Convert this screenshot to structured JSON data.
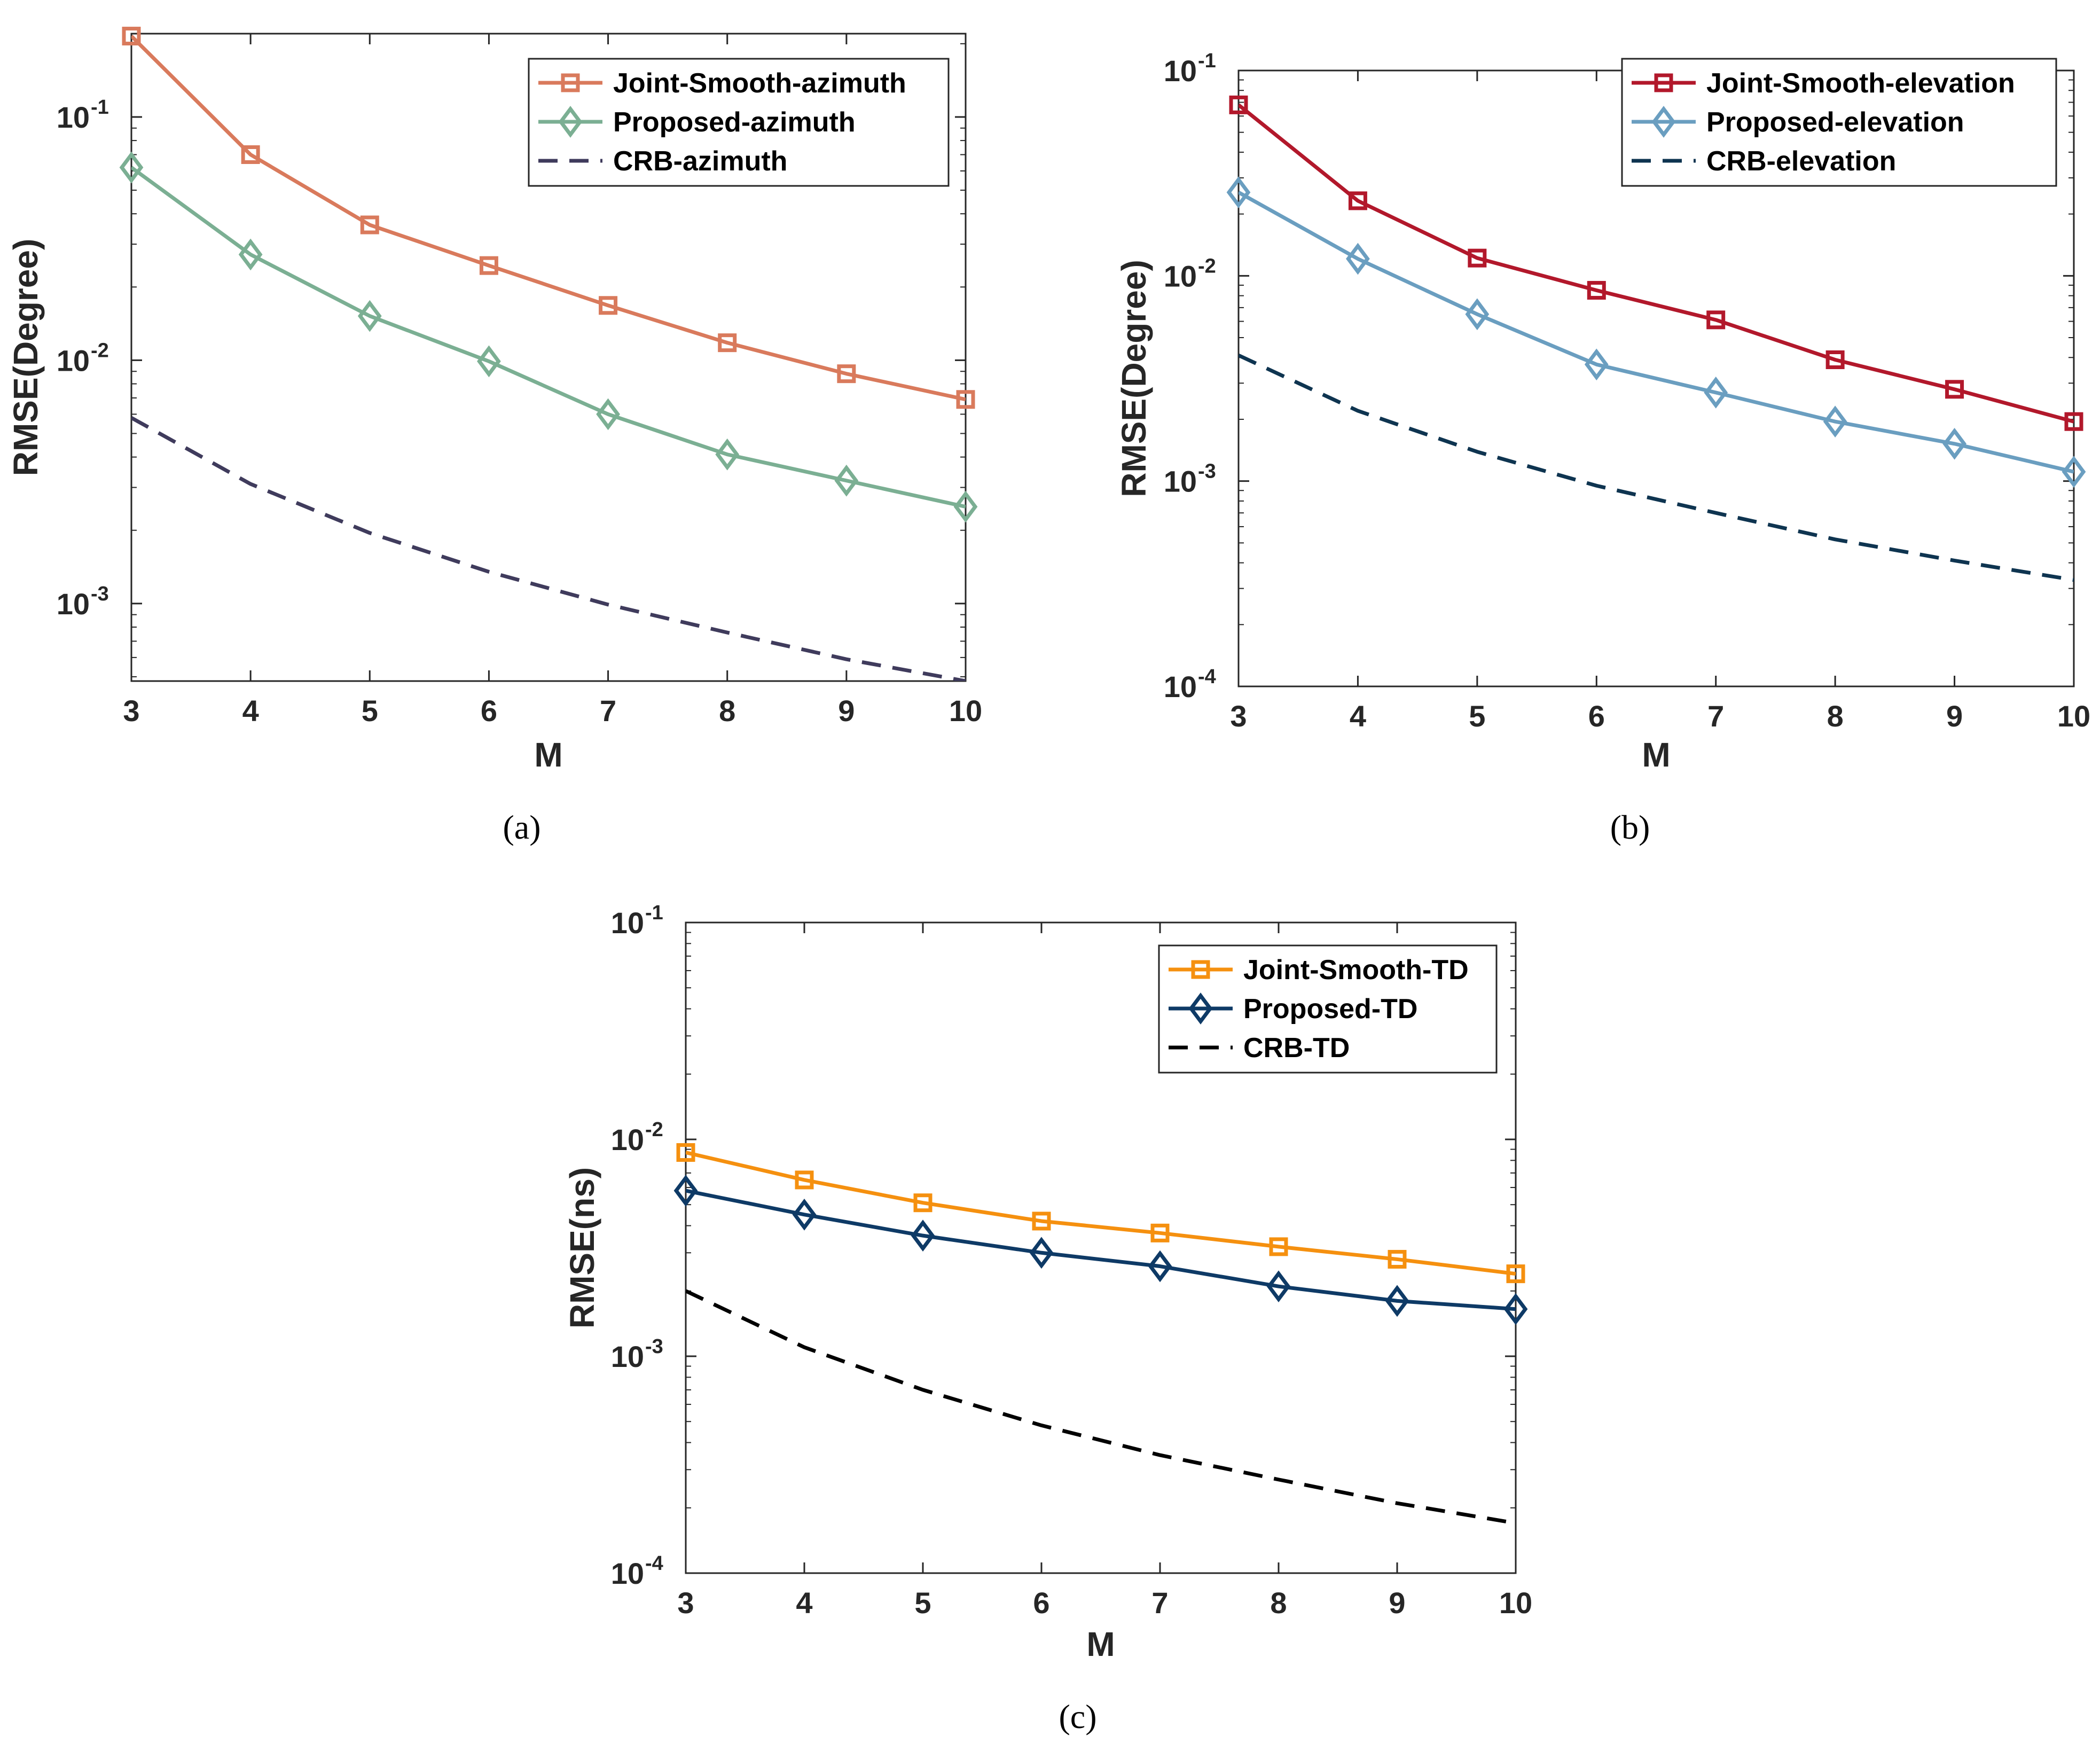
{
  "chart_data": [
    {
      "type": "line",
      "caption": "(a)",
      "xlabel": "M",
      "ylabel": "RMSE(Degree)",
      "yscale": "log",
      "x": [
        3,
        4,
        5,
        6,
        7,
        8,
        9,
        10
      ],
      "xlim": [
        3,
        10
      ],
      "ylim": [
        0.00048,
        0.22
      ],
      "yticks": [
        {
          "base": "10",
          "exp": "-1",
          "value": 0.1
        },
        {
          "base": "10",
          "exp": "-2",
          "value": 0.01
        },
        {
          "base": "10",
          "exp": "-3",
          "value": 0.001
        }
      ],
      "legend_position": "top-right",
      "series": [
        {
          "name": "Joint-Smooth-azimuth",
          "color": "#D97A5C",
          "marker": "square",
          "dash": "solid",
          "values": [
            0.215,
            0.07,
            0.036,
            0.0245,
            0.0168,
            0.0118,
            0.0088,
            0.0069
          ]
        },
        {
          "name": "Proposed-azimuth",
          "color": "#7BAF93",
          "marker": "diamond",
          "dash": "solid",
          "values": [
            0.062,
            0.0272,
            0.0152,
            0.0099,
            0.006,
            0.0041,
            0.0032,
            0.0025
          ]
        },
        {
          "name": "CRB-azimuth",
          "color": "#3F3B5C",
          "marker": "none",
          "dash": "dashed",
          "values": [
            0.0058,
            0.0031,
            0.00195,
            0.00135,
            0.00099,
            0.00076,
            0.00059,
            0.00048
          ]
        }
      ]
    },
    {
      "type": "line",
      "caption": "(b)",
      "xlabel": "M",
      "ylabel": "RMSE(Degree)",
      "yscale": "log",
      "x": [
        3,
        4,
        5,
        6,
        7,
        8,
        9,
        10
      ],
      "xlim": [
        3,
        10
      ],
      "ylim": [
        0.0001,
        0.1
      ],
      "yticks": [
        {
          "base": "10",
          "exp": "-1",
          "value": 0.1
        },
        {
          "base": "10",
          "exp": "-2",
          "value": 0.01
        },
        {
          "base": "10",
          "exp": "-3",
          "value": 0.001
        },
        {
          "base": "10",
          "exp": "-4",
          "value": 0.0001
        }
      ],
      "legend_position": "top-right",
      "series": [
        {
          "name": "Joint-Smooth-elevation",
          "color": "#B2182B",
          "marker": "square",
          "dash": "solid",
          "values": [
            0.068,
            0.0232,
            0.0122,
            0.0085,
            0.0061,
            0.0039,
            0.0028,
            0.00195
          ]
        },
        {
          "name": "Proposed-elevation",
          "color": "#6A9EC0",
          "marker": "diamond",
          "dash": "solid",
          "values": [
            0.0255,
            0.0121,
            0.0065,
            0.0037,
            0.0027,
            0.00195,
            0.00152,
            0.00111
          ]
        },
        {
          "name": "CRB-elevation",
          "color": "#0E3450",
          "marker": "none",
          "dash": "dashed",
          "values": [
            0.0041,
            0.0022,
            0.00139,
            0.00095,
            0.0007,
            0.00052,
            0.00041,
            0.00033
          ]
        }
      ]
    },
    {
      "type": "line",
      "caption": "(c)",
      "xlabel": "M",
      "ylabel": "RMSE(ns)",
      "yscale": "log",
      "x": [
        3,
        4,
        5,
        6,
        7,
        8,
        9,
        10
      ],
      "xlim": [
        3,
        10
      ],
      "ylim": [
        0.0001,
        0.1
      ],
      "yticks": [
        {
          "base": "10",
          "exp": "-1",
          "value": 0.1
        },
        {
          "base": "10",
          "exp": "-2",
          "value": 0.01
        },
        {
          "base": "10",
          "exp": "-3",
          "value": 0.001
        },
        {
          "base": "10",
          "exp": "-4",
          "value": 0.0001
        }
      ],
      "legend_position": "top-right",
      "series": [
        {
          "name": "Joint-Smooth-TD",
          "color": "#F5900F",
          "marker": "square",
          "dash": "solid",
          "values": [
            0.0087,
            0.0065,
            0.0051,
            0.0042,
            0.0037,
            0.0032,
            0.0028,
            0.0024
          ]
        },
        {
          "name": "Proposed-TD",
          "color": "#0E3A66",
          "marker": "diamond",
          "dash": "solid",
          "values": [
            0.0058,
            0.0045,
            0.0036,
            0.003,
            0.0026,
            0.0021,
            0.0018,
            0.00165
          ]
        },
        {
          "name": "CRB-TD",
          "color": "#000000",
          "marker": "none",
          "dash": "dashed",
          "values": [
            0.002,
            0.0011,
            0.0007,
            0.00048,
            0.00035,
            0.00027,
            0.00021,
            0.00017
          ]
        }
      ]
    }
  ]
}
